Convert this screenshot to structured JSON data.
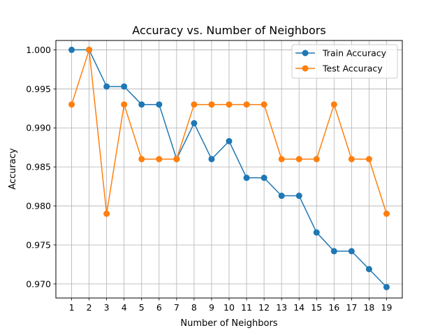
{
  "chart_data": {
    "type": "line",
    "title": "Accuracy vs. Number of Neighbors",
    "xlabel": "Number of Neighbors",
    "ylabel": "Accuracy",
    "x": [
      1,
      2,
      3,
      4,
      5,
      6,
      7,
      8,
      9,
      10,
      11,
      12,
      13,
      14,
      15,
      16,
      17,
      18,
      19
    ],
    "xlim": [
      0.1,
      19.9
    ],
    "ylim": [
      0.9682,
      1.0012
    ],
    "xticks": [
      1,
      2,
      3,
      4,
      5,
      6,
      7,
      8,
      9,
      10,
      11,
      12,
      13,
      14,
      15,
      16,
      17,
      18,
      19
    ],
    "yticks": [
      0.97,
      0.975,
      0.98,
      0.985,
      0.99,
      0.995,
      1.0
    ],
    "ytick_labels": [
      "0.970",
      "0.975",
      "0.980",
      "0.985",
      "0.990",
      "0.995",
      "1.000"
    ],
    "grid": true,
    "legend_position": "top-right",
    "series": [
      {
        "name": "Train Accuracy",
        "color": "#1f77b4",
        "marker": "circle",
        "values": [
          1.0,
          1.0,
          0.9953,
          0.9953,
          0.993,
          0.993,
          0.986,
          0.9906,
          0.986,
          0.9883,
          0.9836,
          0.9836,
          0.9813,
          0.9813,
          0.9766,
          0.9742,
          0.9742,
          0.9719,
          0.9696
        ]
      },
      {
        "name": "Test Accuracy",
        "color": "#ff7f0e",
        "marker": "circle",
        "values": [
          0.993,
          1.0,
          0.979,
          0.993,
          0.986,
          0.986,
          0.986,
          0.993,
          0.993,
          0.993,
          0.993,
          0.993,
          0.986,
          0.986,
          0.986,
          0.993,
          0.986,
          0.986,
          0.979
        ]
      }
    ]
  }
}
